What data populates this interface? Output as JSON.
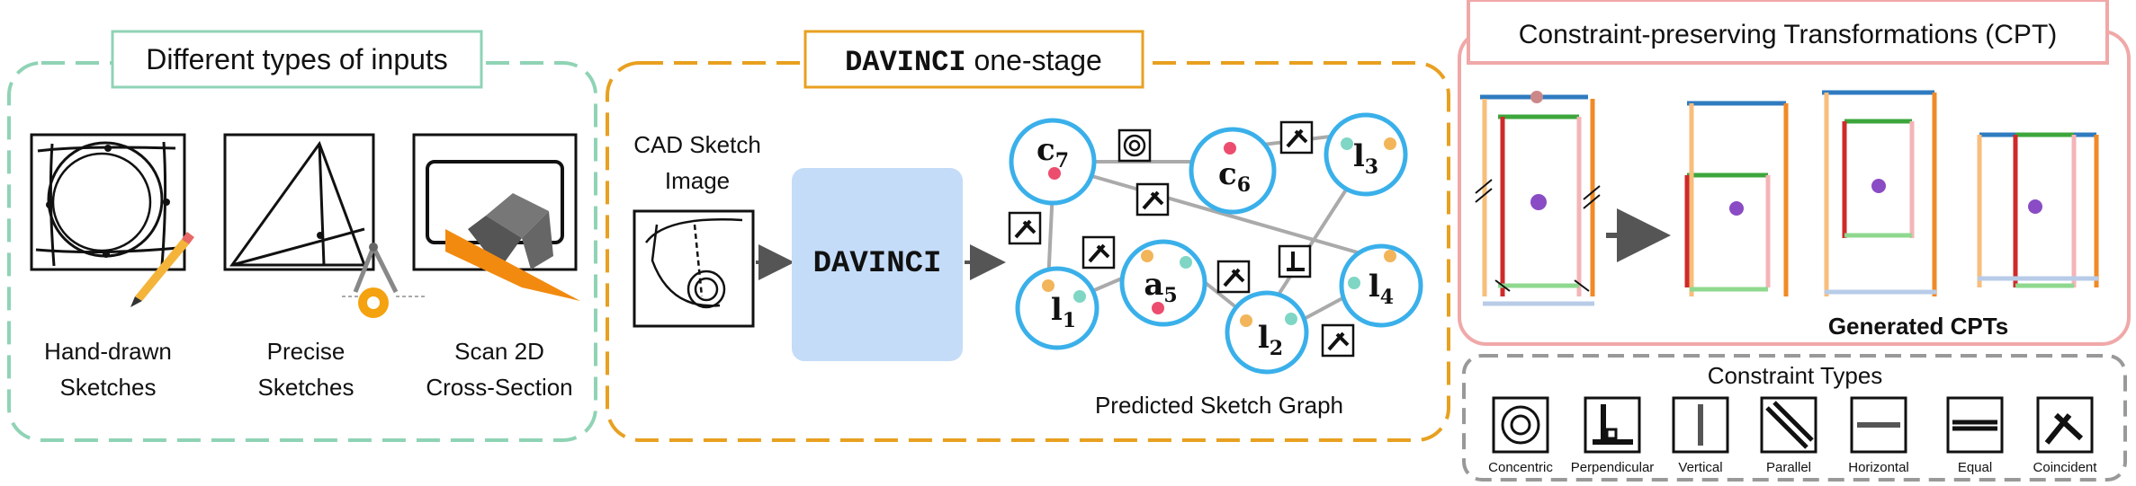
{
  "panel_inputs": {
    "title": "Different types of inputs",
    "items": [
      {
        "line1": "Hand-drawn",
        "line2": "Sketches"
      },
      {
        "line1": "Precise",
        "line2": "Sketches"
      },
      {
        "line1": "Scan 2D",
        "line2": "Cross-Section"
      }
    ]
  },
  "panel_model": {
    "title_mono": "DAVINCI",
    "title_rest": " one-stage",
    "image_label_line1": "CAD Sketch",
    "image_label_line2": "Image",
    "model_box_label": "DAVINCI",
    "graph_caption": "Predicted Sketch Graph",
    "nodes": [
      {
        "sym": "c",
        "sub": "7"
      },
      {
        "sym": "c",
        "sub": "6"
      },
      {
        "sym": "l",
        "sub": "3"
      },
      {
        "sym": "a",
        "sub": "5"
      },
      {
        "sym": "l",
        "sub": "1"
      },
      {
        "sym": "l",
        "sub": "2"
      },
      {
        "sym": "l",
        "sub": "4"
      }
    ]
  },
  "panel_cpt": {
    "title": "Constraint-preserving Transformations (CPT)",
    "generated_label": "Generated CPTs"
  },
  "panel_constraints": {
    "title": "Constraint Types",
    "types": [
      "Concentric",
      "Perpendicular",
      "Vertical",
      "Parallel",
      "Horizontal",
      "Equal",
      "Coincident"
    ]
  },
  "colors": {
    "green_panel": "#8fd3b5",
    "orange_panel": "#e8a020",
    "pink_panel": "#f0a8a8",
    "gray_panel": "#999999",
    "node_ring": "#3ab0ea",
    "model_box": "#c4dcf8",
    "dot_orange": "#f2b55a",
    "dot_teal": "#7fd6c4",
    "dot_pink": "#ec4d6e"
  }
}
